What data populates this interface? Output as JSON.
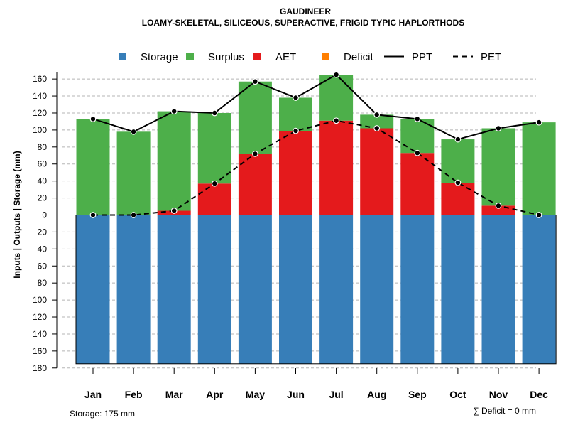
{
  "chart_data": {
    "type": "bar",
    "title": "GAUDINEER",
    "subtitle": "LOAMY-SKELETAL, SILICEOUS, SUPERACTIVE, FRIGID TYPIC HAPLORTHODS",
    "ylabel": "Inputs | Outputs | Storage    (mm)",
    "categories": [
      "Jan",
      "Feb",
      "Mar",
      "Apr",
      "May",
      "Jun",
      "Jul",
      "Aug",
      "Sep",
      "Oct",
      "Nov",
      "Dec"
    ],
    "series": [
      {
        "name": "Storage",
        "color": "#377EB8",
        "values": [
          175,
          175,
          175,
          175,
          175,
          175,
          175,
          175,
          175,
          175,
          175,
          175
        ]
      },
      {
        "name": "Surplus",
        "color": "#4DAF4A",
        "values": [
          113,
          98,
          117,
          83,
          85,
          39,
          54,
          16,
          40,
          51,
          91,
          109
        ]
      },
      {
        "name": "AET",
        "color": "#E41A1C",
        "values": [
          0,
          0,
          5,
          37,
          72,
          99,
          111,
          102,
          73,
          38,
          11,
          0
        ]
      },
      {
        "name": "Deficit",
        "color": "#FF7F00",
        "values": [
          0,
          0,
          0,
          0,
          0,
          0,
          0,
          0,
          0,
          0,
          0,
          0
        ]
      },
      {
        "name": "PPT",
        "color": "#000000",
        "style": "solid",
        "values": [
          113,
          98,
          122,
          120,
          157,
          138,
          165,
          118,
          113,
          89,
          102,
          109
        ]
      },
      {
        "name": "PET",
        "color": "#000000",
        "style": "dashed",
        "values": [
          0,
          0,
          5,
          37,
          72,
          99,
          111,
          102,
          73,
          38,
          11,
          0
        ]
      }
    ],
    "yticks_positive": [
      0,
      20,
      40,
      60,
      80,
      100,
      120,
      140,
      160
    ],
    "yticks_negative": [
      20,
      40,
      60,
      80,
      100,
      120,
      140,
      160,
      180
    ],
    "ylim": [
      -180,
      170
    ],
    "grid": true,
    "legend_position": "top",
    "storage_note": "Storage: 175 mm",
    "deficit_note": "∑ Deficit = 0 mm"
  }
}
